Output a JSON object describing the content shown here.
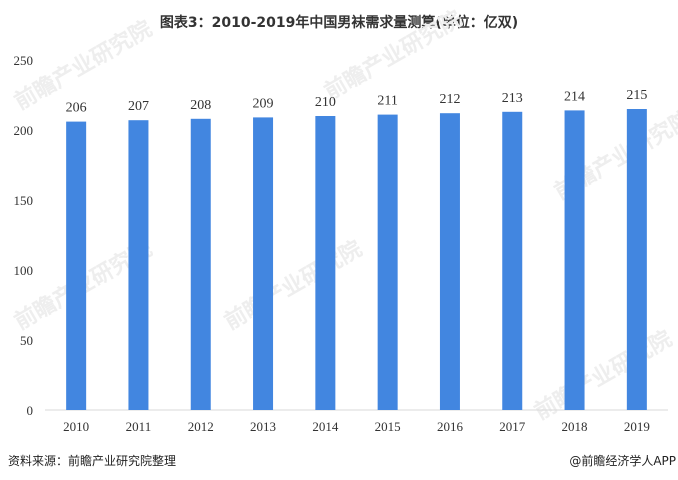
{
  "chart_data": {
    "type": "bar",
    "title": "图表3：2010-2019年中国男袜需求量测算(单位：亿双)",
    "categories": [
      "2010",
      "2011",
      "2012",
      "2013",
      "2014",
      "2015",
      "2016",
      "2017",
      "2018",
      "2019"
    ],
    "values": [
      206,
      207,
      208,
      209,
      210,
      211,
      212,
      213,
      214,
      215
    ],
    "xlabel": "",
    "ylabel": "",
    "ylim": [
      0,
      250
    ],
    "yticks": [
      0,
      50,
      100,
      150,
      200,
      250
    ],
    "grid": false,
    "bar_color": "#4286e0",
    "data_labels": true
  },
  "footer": {
    "source": "资料来源：前瞻产业研究院整理",
    "credit": "@前瞻经济学人APP"
  },
  "watermark": "前瞻产业研究院"
}
